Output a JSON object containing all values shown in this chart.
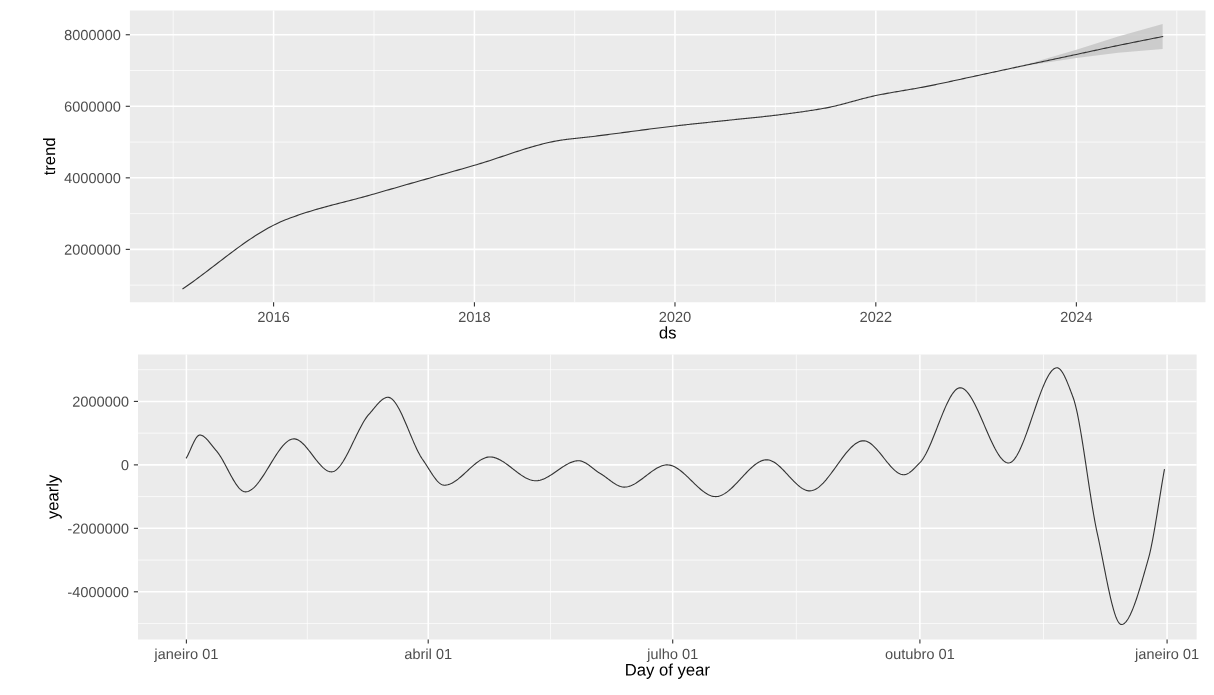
{
  "chart_data": [
    {
      "type": "line",
      "xlabel": "ds",
      "ylabel": "trend",
      "grid": true,
      "x": [
        "2015-02-05",
        "2016-02-05",
        "2017-01-01",
        "2018-01-01",
        "2018-11-10",
        "2019-03-01",
        "2020-01-01",
        "2020-07-01",
        "2021-01-01",
        "2021-07-01",
        "2022-01-01",
        "2022-07-01",
        "2023-01-01",
        "2023-06-01",
        "2024-01-01",
        "2024-06-01",
        "2024-11-10"
      ],
      "series": [
        {
          "color": "#333333",
          "values": [
            900000,
            2800000,
            3550000,
            4350000,
            5050000,
            5150000,
            5450000,
            5600000,
            5750000,
            5950000,
            6300000,
            6550000,
            6850000,
            7100000,
            7450000,
            7700000,
            7950000
          ],
          "lower": [
            null,
            null,
            null,
            null,
            null,
            null,
            null,
            null,
            null,
            null,
            null,
            null,
            null,
            7100000,
            7350000,
            7500000,
            7600000
          ],
          "upper": [
            null,
            null,
            null,
            null,
            null,
            null,
            null,
            null,
            null,
            null,
            null,
            null,
            null,
            7100000,
            7580000,
            7950000,
            8300000
          ]
        }
      ],
      "xlim": [
        "2014-07-27",
        "2025-04-15"
      ],
      "ylim": [
        520000,
        8680000
      ],
      "xticks": [
        {
          "value": "2016-01-01",
          "label": "2016"
        },
        {
          "value": "2018-01-01",
          "label": "2018"
        },
        {
          "value": "2020-01-01",
          "label": "2020"
        },
        {
          "value": "2022-01-01",
          "label": "2022"
        },
        {
          "value": "2024-01-01",
          "label": "2024"
        }
      ],
      "yticks": [
        2000000,
        4000000,
        6000000,
        8000000
      ]
    },
    {
      "type": "line",
      "xlabel": "Day of year",
      "ylabel": "yearly",
      "grid": true,
      "x": [
        "2017-01-01",
        "2017-01-06",
        "2017-01-12",
        "2017-01-23",
        "2017-02-10",
        "2017-02-24",
        "2017-03-10",
        "2017-03-17",
        "2017-03-30",
        "2017-04-07",
        "2017-04-24",
        "2017-05-11",
        "2017-05-27",
        "2017-06-04",
        "2017-06-13",
        "2017-06-29",
        "2017-07-17",
        "2017-08-05",
        "2017-08-21",
        "2017-09-10",
        "2017-09-25",
        "2017-10-01",
        "2017-10-16",
        "2017-11-03",
        "2017-11-21",
        "2017-11-27",
        "2017-12-06",
        "2017-12-15",
        "2017-12-25",
        "2017-12-31"
      ],
      "series": [
        {
          "color": "#333333",
          "values": [
            220000,
            940000,
            460000,
            -850000,
            820000,
            -220000,
            1600000,
            2130000,
            160000,
            -640000,
            250000,
            -500000,
            130000,
            -270000,
            -700000,
            0,
            -1000000,
            160000,
            -820000,
            760000,
            -310000,
            70000,
            2430000,
            60000,
            3060000,
            2130000,
            -2150000,
            -5030000,
            -2970000,
            -150000
          ]
        }
      ],
      "xlim": [
        "2016-12-14",
        "2018-01-12"
      ],
      "ylim": [
        -5500000,
        3480000
      ],
      "xticks": [
        {
          "value": "2017-01-01",
          "label": "janeiro 01"
        },
        {
          "value": "2017-04-01",
          "label": "abril 01"
        },
        {
          "value": "2017-07-01",
          "label": "julho 01"
        },
        {
          "value": "2017-10-01",
          "label": "outubro 01"
        },
        {
          "value": "2018-01-01",
          "label": "janeiro 01"
        }
      ],
      "yticks": [
        -4000000,
        -2000000,
        0,
        2000000
      ]
    }
  ]
}
